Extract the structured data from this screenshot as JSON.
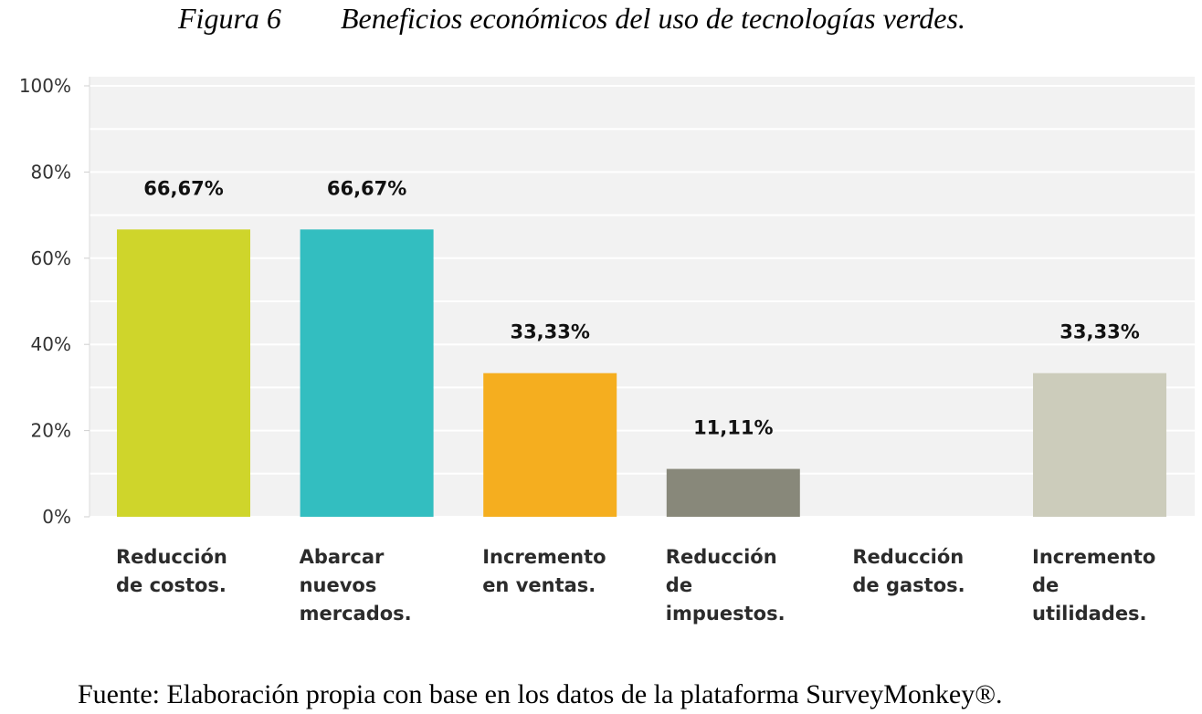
{
  "figure": {
    "number": "Figura 6",
    "title": "Beneficios económicos del uso de tecnologías verdes.",
    "source": "Fuente: Elaboración propia con base en los datos de la plataforma SurveyMonkey®."
  },
  "chart_data": {
    "type": "bar",
    "title": "Beneficios económicos del uso de tecnologías verdes.",
    "xlabel": "",
    "ylabel": "",
    "ylim": [
      0,
      100
    ],
    "grid": true,
    "legend": "none",
    "y_ticks": [
      "0%",
      "20%",
      "40%",
      "60%",
      "80%",
      "100%"
    ],
    "categories": [
      [
        "Reducción",
        "de costos."
      ],
      [
        "Abarcar",
        "nuevos",
        "mercados."
      ],
      [
        "Incremento",
        "en ventas."
      ],
      [
        "Reducción",
        "de",
        "impuestos."
      ],
      [
        "Reducción",
        "de gastos."
      ],
      [
        "Incremento",
        "de",
        "utilidades."
      ]
    ],
    "values": [
      66.67,
      66.67,
      33.33,
      11.11,
      0,
      33.33
    ],
    "data_labels": [
      "66,67%",
      "66,67%",
      "33,33%",
      "11,11%",
      "",
      "33,33%"
    ],
    "colors": [
      "#cfd52b",
      "#33bec0",
      "#f5ae1f",
      "#88887a",
      "#b7b7a4",
      "#ccccbb"
    ],
    "background": "#f2f2f2",
    "gridline_color": "#ffffff"
  }
}
